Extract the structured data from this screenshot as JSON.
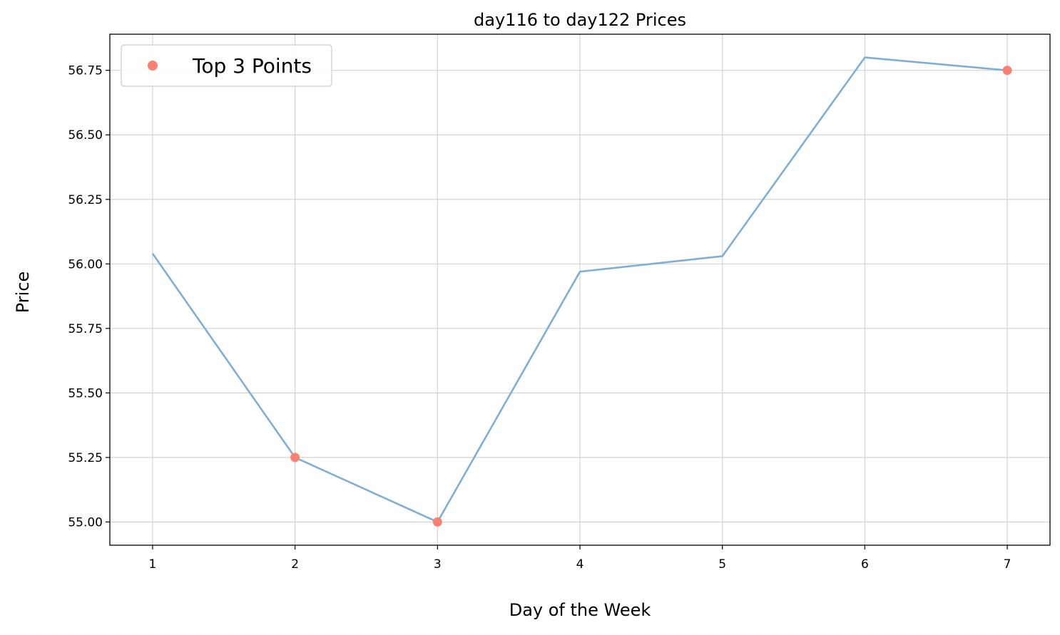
{
  "chart_data": {
    "type": "line",
    "title": "day116 to day122 Prices",
    "xlabel": "Day of the Week",
    "ylabel": "Price",
    "x": [
      1,
      2,
      3,
      4,
      5,
      6,
      7
    ],
    "series": [
      {
        "values": [
          56.04,
          55.25,
          55.0,
          55.97,
          56.03,
          56.8,
          56.75
        ],
        "color": "#7fafd4"
      }
    ],
    "highlight_points": {
      "name": "Top 3 Points",
      "color": "#fa8072",
      "x": [
        2,
        3,
        7
      ],
      "y": [
        55.25,
        55.0,
        56.75
      ]
    },
    "x_ticks": [
      "1",
      "2",
      "3",
      "4",
      "5",
      "6",
      "7"
    ],
    "y_ticks": [
      "55.00",
      "55.25",
      "55.50",
      "55.75",
      "56.00",
      "56.25",
      "56.50",
      "56.75"
    ],
    "xlim": [
      0.7,
      7.3
    ],
    "ylim": [
      54.91,
      56.89
    ],
    "grid": true,
    "legend_position": "top-left"
  }
}
